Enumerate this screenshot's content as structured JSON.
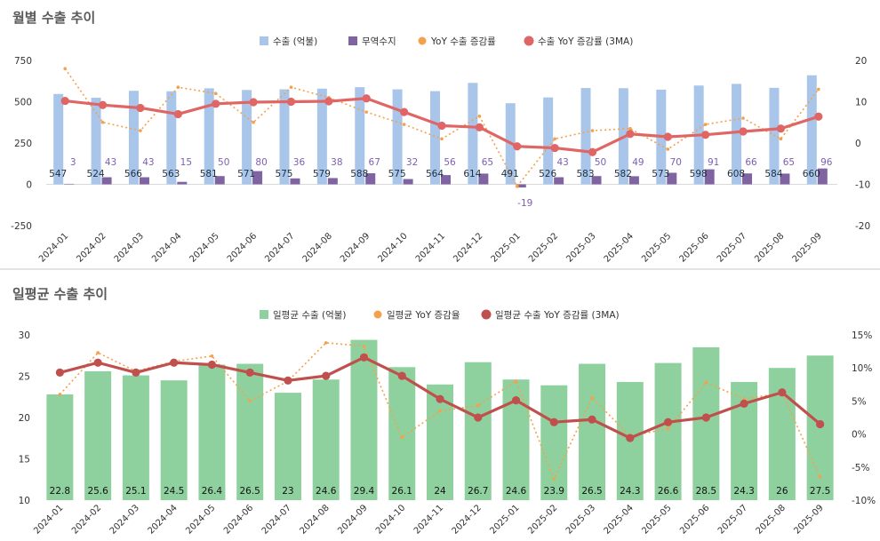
{
  "colors": {
    "export_bar": "#a9c6ea",
    "balance_bar": "#8064a2",
    "yoy_dot": "#f5a04c",
    "yoy_3ma_top": "#e06666",
    "daily_bar": "#8fd19e",
    "daily_yoy_dot": "#f5a04c",
    "daily_3ma": "#c0504d",
    "balance_label": "#7d5fb0",
    "label_dark": "#1f2d3d"
  },
  "chart_data": [
    {
      "type": "bar",
      "title": "월별 수출 추이",
      "categories": [
        "2024-01",
        "2024-02",
        "2024-03",
        "2024-04",
        "2024-05",
        "2024-06",
        "2024-07",
        "2024-08",
        "2024-09",
        "2024-10",
        "2024-11",
        "2024-12",
        "2025-01",
        "2025-02",
        "2025-03",
        "2025-04",
        "2025-05",
        "2025-06",
        "2025-07",
        "2025-08",
        "2025-09"
      ],
      "legend": [
        "수출 (억불)",
        "무역수지",
        "YoY 수출 증감률",
        "수출 YoY 증감률 (3MA)"
      ],
      "series": [
        {
          "name": "수출 (억불)",
          "kind": "bar",
          "axis": "left",
          "values": [
            547,
            524,
            566,
            563,
            581,
            571,
            575,
            579,
            588,
            575,
            564,
            614,
            491,
            526,
            583,
            582,
            573,
            598,
            608,
            584,
            660
          ]
        },
        {
          "name": "무역수지",
          "kind": "bar",
          "axis": "left",
          "values": [
            3,
            43,
            43,
            15,
            50,
            80,
            36,
            38,
            67,
            32,
            56,
            65,
            -19,
            43,
            50,
            49,
            70,
            91,
            66,
            65,
            96
          ]
        },
        {
          "name": "YoY 수출 증감률",
          "kind": "dotted-line",
          "axis": "right",
          "values": [
            18,
            5,
            3,
            13.5,
            12,
            5,
            13.5,
            11,
            7.5,
            4.5,
            1,
            6.5,
            -10.5,
            1,
            3,
            3.5,
            -1.5,
            4.5,
            6,
            1,
            13
          ]
        },
        {
          "name": "수출 YoY 증감률 (3MA)",
          "kind": "line",
          "axis": "right",
          "values": [
            10.2,
            9.2,
            8.5,
            7,
            9.5,
            9.9,
            10,
            10.1,
            10.8,
            7.5,
            4.2,
            3.8,
            -0.8,
            -1.2,
            -2.2,
            2.2,
            1.5,
            2,
            2.8,
            3.5,
            6.4
          ]
        }
      ],
      "left_axis": {
        "range": [
          -250,
          750
        ],
        "ticks": [
          "750",
          "500",
          "250",
          "0",
          "-250"
        ]
      },
      "right_axis": {
        "range": [
          -20,
          20
        ],
        "ticks": [
          "20",
          "10",
          "0",
          "-10",
          "-20"
        ]
      }
    },
    {
      "type": "bar",
      "title": "일평균 수출 추이",
      "categories": [
        "2024-01",
        "2024-02",
        "2024-03",
        "2024-04",
        "2024-05",
        "2024-06",
        "2024-07",
        "2024-08",
        "2024-09",
        "2024-10",
        "2024-11",
        "2024-12",
        "2025-01",
        "2025-02",
        "2025-03",
        "2025-04",
        "2025-05",
        "2025-06",
        "2025-07",
        "2025-08",
        "2025-09"
      ],
      "legend": [
        "일평균 수출 (억불)",
        "일평균 YoY 증감율",
        "일평균 수출 YoY 증감률 (3MA)"
      ],
      "series": [
        {
          "name": "일평균 수출 (억불)",
          "kind": "bar",
          "axis": "left",
          "values": [
            22.8,
            25.6,
            25.1,
            24.5,
            26.4,
            26.5,
            23,
            24.6,
            29.4,
            26.1,
            24,
            26.7,
            24.6,
            23.9,
            26.5,
            24.3,
            26.6,
            28.5,
            24.3,
            26,
            27.5
          ],
          "labels": [
            "22.8",
            "25.6",
            "25.1",
            "24.5",
            "26.4",
            "26.5",
            "23",
            "24.6",
            "29.4",
            "26.1",
            "24",
            "26.7",
            "24.6",
            "23.9",
            "26.5",
            "24.3",
            "26.6",
            "28.5",
            "24.3",
            "26",
            "27.5"
          ]
        },
        {
          "name": "일평균 YoY 증감율",
          "kind": "dotted-line",
          "axis": "right",
          "values": [
            6,
            12.3,
            9.5,
            11,
            11.8,
            5,
            8,
            13.8,
            13.3,
            -0.5,
            3.5,
            4.3,
            8,
            -6.8,
            5.5,
            -0.3,
            0.8,
            7.8,
            5.3,
            6.2,
            -6.5
          ]
        },
        {
          "name": "일평균 수출 YoY 증감률 (3MA)",
          "kind": "line",
          "axis": "right",
          "values": [
            9.3,
            10.8,
            9.3,
            10.8,
            10.5,
            9.3,
            8.1,
            8.8,
            11.6,
            8.8,
            5.3,
            2.5,
            5.1,
            1.8,
            2.2,
            -0.6,
            1.8,
            2.5,
            4.6,
            6.3,
            1.5
          ]
        }
      ],
      "left_axis": {
        "range": [
          10,
          30
        ],
        "ticks": [
          "30",
          "25",
          "20",
          "15",
          "10"
        ]
      },
      "right_axis": {
        "range": [
          -10,
          15
        ],
        "ticks": [
          "15%",
          "10%",
          "5%",
          "0%",
          "-5%",
          "-10%"
        ]
      }
    }
  ]
}
